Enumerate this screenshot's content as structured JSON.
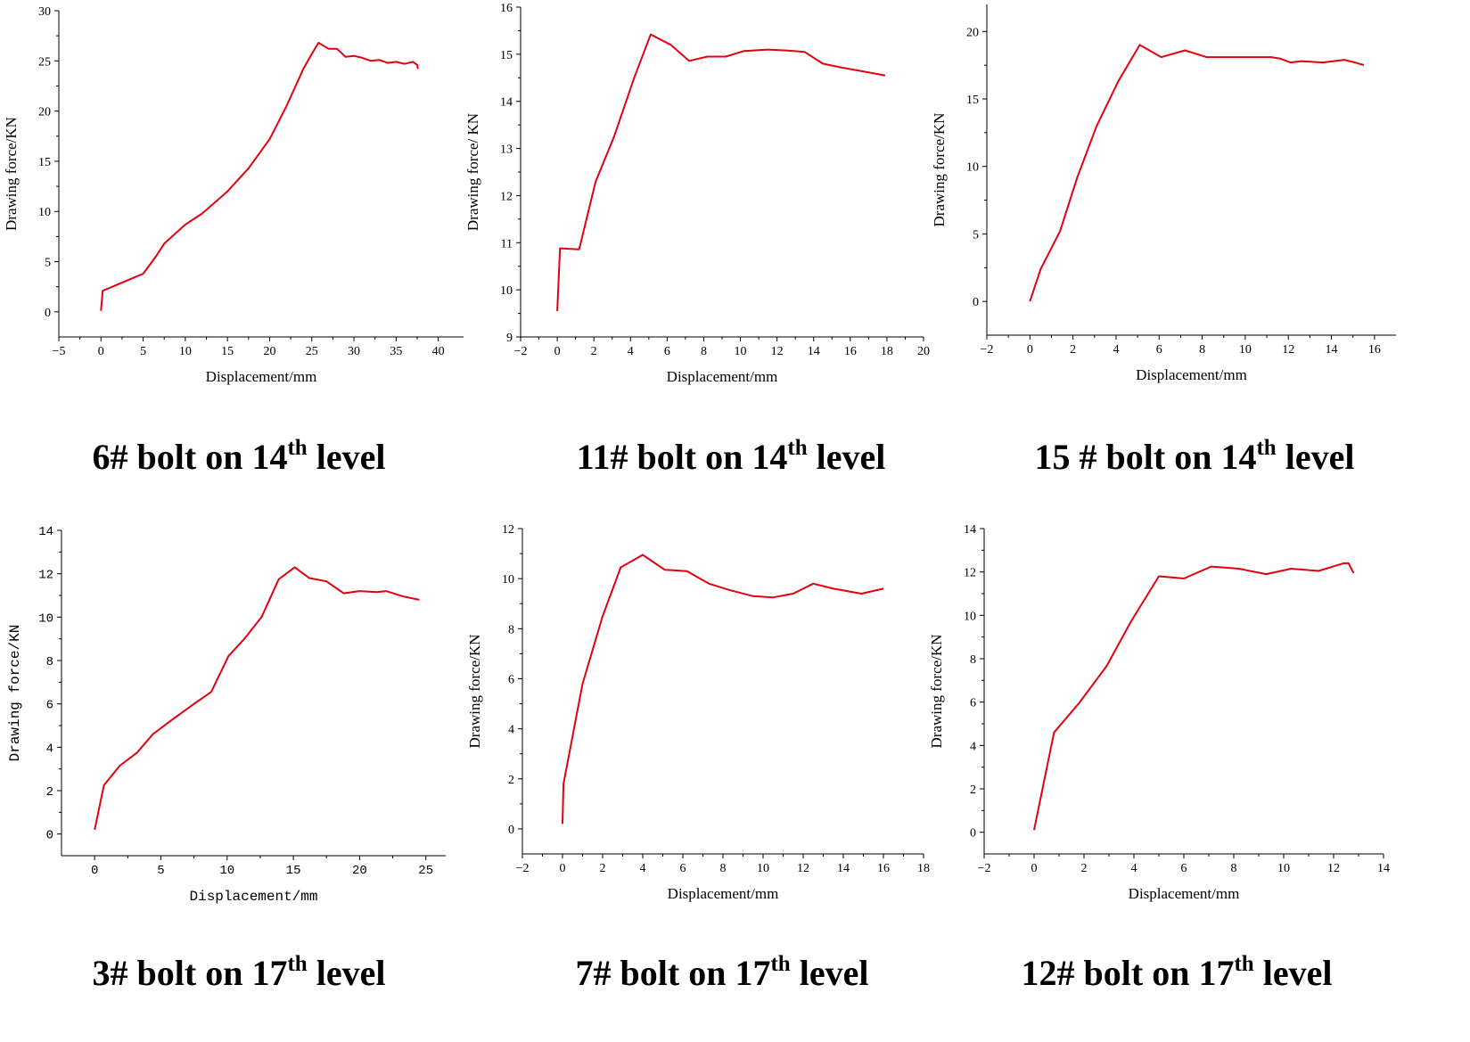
{
  "figure": {
    "line_color": "#e3000f"
  },
  "chart_data": [
    {
      "type": "line",
      "caption": {
        "main": "6# bolt on 14",
        "sup": "th",
        "tail": " level"
      },
      "xlabel": "Displacement/mm",
      "ylabel": "Drawing force/KN",
      "xlim": [
        -5,
        43
      ],
      "ylim": [
        -2.5,
        30
      ],
      "xticks": [
        -5,
        0,
        5,
        10,
        15,
        20,
        25,
        30,
        35,
        40
      ],
      "yticks": [
        0,
        5,
        10,
        15,
        20,
        25,
        30
      ],
      "x": [
        0,
        0.2,
        5,
        6.5,
        7.5,
        10,
        12,
        15,
        17.5,
        20,
        22,
        24,
        25,
        25.8,
        27,
        28,
        29,
        30,
        31,
        32,
        33,
        34,
        35,
        36,
        37,
        37.5,
        37.6
      ],
      "y": [
        0.1,
        2.1,
        3.8,
        5.5,
        6.8,
        8.7,
        9.8,
        12,
        14.3,
        17.2,
        20.5,
        24.2,
        25.7,
        26.8,
        26.2,
        26.2,
        25.4,
        25.5,
        25.3,
        25.0,
        25.1,
        24.8,
        24.9,
        24.7,
        24.9,
        24.6,
        24.2
      ],
      "xlabel_mono": false,
      "ylabel_mono": false
    },
    {
      "type": "line",
      "caption": {
        "main": "11# bolt on 14",
        "sup": "th",
        "tail": " level"
      },
      "xlabel": "Displacement/mm",
      "ylabel": "Drawing force/ KN",
      "xlim": [
        -2,
        20
      ],
      "ylim": [
        9,
        16
      ],
      "xticks": [
        -2,
        0,
        2,
        4,
        6,
        8,
        10,
        12,
        14,
        16,
        18,
        20
      ],
      "yticks": [
        9,
        10,
        11,
        12,
        13,
        14,
        15,
        16
      ],
      "x": [
        0,
        0.15,
        1.2,
        2.1,
        3.1,
        4.2,
        5.1,
        6.2,
        7.2,
        8.2,
        9.2,
        10.2,
        11.5,
        12.5,
        13.5,
        14.5,
        15.5,
        16.5,
        17.9
      ],
      "y": [
        9.55,
        10.88,
        10.86,
        12.3,
        13.25,
        14.5,
        15.42,
        15.2,
        14.86,
        14.95,
        14.95,
        15.07,
        15.1,
        15.08,
        15.05,
        14.8,
        14.72,
        14.65,
        14.55
      ],
      "xlabel_mono": false,
      "ylabel_mono": false
    },
    {
      "type": "line",
      "caption": {
        "main": "15 # bolt on 14",
        "sup": "th",
        "tail": " level"
      },
      "xlabel": "Displacement/mm",
      "ylabel": "Drawing force/KN",
      "xlim": [
        -2,
        17
      ],
      "ylim": [
        -2.5,
        22
      ],
      "xticks": [
        -2,
        0,
        2,
        4,
        6,
        8,
        10,
        12,
        14,
        16
      ],
      "yticks": [
        0,
        5,
        10,
        15,
        20
      ],
      "x": [
        0,
        0.5,
        1.4,
        2.2,
        3.1,
        4.1,
        5.1,
        6.1,
        7.2,
        8.2,
        9.2,
        10.2,
        11.2,
        11.6,
        12.1,
        12.6,
        13.6,
        14.6,
        15.1,
        15.5
      ],
      "y": [
        0,
        2.4,
        5.2,
        9.2,
        13.0,
        16.3,
        19.0,
        18.1,
        18.6,
        18.1,
        18.1,
        18.1,
        18.1,
        18.0,
        17.7,
        17.8,
        17.7,
        17.9,
        17.7,
        17.5
      ],
      "xlabel_mono": false,
      "ylabel_mono": false
    },
    {
      "type": "line",
      "caption": {
        "main": "3# bolt on 17",
        "sup": "th",
        "tail": " level"
      },
      "xlabel": "Displacement/mm",
      "ylabel": "Drawing force/KN",
      "xlim": [
        -2.5,
        26.5
      ],
      "ylim": [
        -1,
        14
      ],
      "xticks": [
        0,
        5,
        10,
        15,
        20,
        25
      ],
      "yticks": [
        0,
        2,
        4,
        6,
        8,
        10,
        12,
        14
      ],
      "x": [
        0,
        0.7,
        1.9,
        3.2,
        4.4,
        5.7,
        7.5,
        8.8,
        10.1,
        11.3,
        12.6,
        13.9,
        15.1,
        16.2,
        17.5,
        18.8,
        20,
        21.3,
        22,
        23.3,
        24.5
      ],
      "y": [
        0.2,
        2.25,
        3.15,
        3.75,
        4.6,
        5.2,
        6.0,
        6.55,
        8.2,
        9.0,
        10.0,
        11.75,
        12.3,
        11.8,
        11.65,
        11.1,
        11.2,
        11.15,
        11.2,
        10.95,
        10.8
      ],
      "xlabel_mono": true,
      "ylabel_mono": true
    },
    {
      "type": "line",
      "caption": {
        "main": "7# bolt on 17",
        "sup": "th",
        "tail": " level"
      },
      "xlabel": "Displacement/mm",
      "ylabel": "Drawing force/KN",
      "xlim": [
        -2,
        18
      ],
      "ylim": [
        -1,
        12
      ],
      "xticks": [
        -2,
        0,
        2,
        4,
        6,
        8,
        10,
        12,
        14,
        16,
        18
      ],
      "yticks": [
        0,
        2,
        4,
        6,
        8,
        10,
        12
      ],
      "x": [
        0,
        0.05,
        1.0,
        2.0,
        2.9,
        4.0,
        5.1,
        6.2,
        7.3,
        8.3,
        9.5,
        10.5,
        11.5,
        12.5,
        13.5,
        14.9,
        16.0
      ],
      "y": [
        0.2,
        1.8,
        5.8,
        8.5,
        10.45,
        10.95,
        10.35,
        10.3,
        9.8,
        9.55,
        9.3,
        9.25,
        9.4,
        9.8,
        9.6,
        9.4,
        9.6
      ],
      "xlabel_mono": false,
      "ylabel_mono": false
    },
    {
      "type": "line",
      "caption": {
        "main": "12# bolt on 17",
        "sup": "th",
        "tail": " level"
      },
      "xlabel": "Displacement/mm",
      "ylabel": "Drawing force/KN",
      "xlim": [
        -2,
        14
      ],
      "ylim": [
        -1,
        14
      ],
      "xticks": [
        -2,
        0,
        2,
        4,
        6,
        8,
        10,
        12,
        14
      ],
      "yticks": [
        0,
        2,
        4,
        6,
        8,
        10,
        12,
        14
      ],
      "x": [
        0,
        0.8,
        1.8,
        2.9,
        3.9,
        5.0,
        6.0,
        7.1,
        8.2,
        9.3,
        10.3,
        11.4,
        12.4,
        12.6,
        12.8
      ],
      "y": [
        0.1,
        4.6,
        5.95,
        7.65,
        9.75,
        11.8,
        11.7,
        12.25,
        12.15,
        11.9,
        12.15,
        12.05,
        12.4,
        12.4,
        11.95
      ],
      "xlabel_mono": false,
      "ylabel_mono": false
    }
  ]
}
